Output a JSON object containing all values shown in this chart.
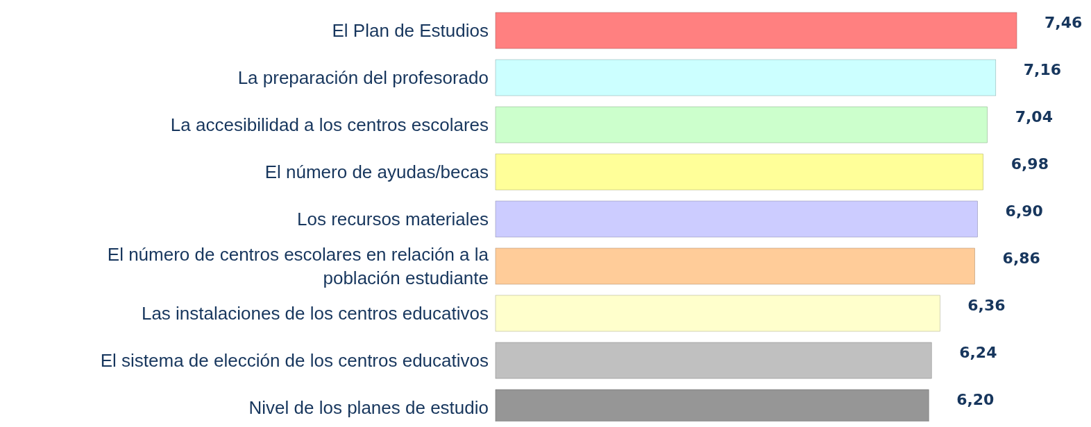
{
  "chart_data": {
    "type": "bar",
    "orientation": "horizontal",
    "categories": [
      "El Plan de Estudios",
      "La preparación del profesorado",
      "La accesibilidad a los centros escolares",
      "El número de ayudas/becas",
      "Los recursos materiales",
      "El número de centros escolares en relación a la población estudiante",
      "Las instalaciones de los centros educativos",
      "El sistema de elección de los centros educativos",
      "Nivel de los planes de estudio"
    ],
    "values": [
      7.46,
      7.16,
      7.04,
      6.98,
      6.9,
      6.86,
      6.36,
      6.24,
      6.2
    ],
    "value_labels": [
      "7,46",
      "7,16",
      "7,04",
      "6,98",
      "6,90",
      "6,86",
      "6,36",
      "6,24",
      "6,20"
    ],
    "colors": [
      "#ff8080",
      "#ccffff",
      "#ccffcc",
      "#ffff99",
      "#ccccff",
      "#ffcc99",
      "#ffffcc",
      "#c0c0c0",
      "#969696"
    ]
  }
}
